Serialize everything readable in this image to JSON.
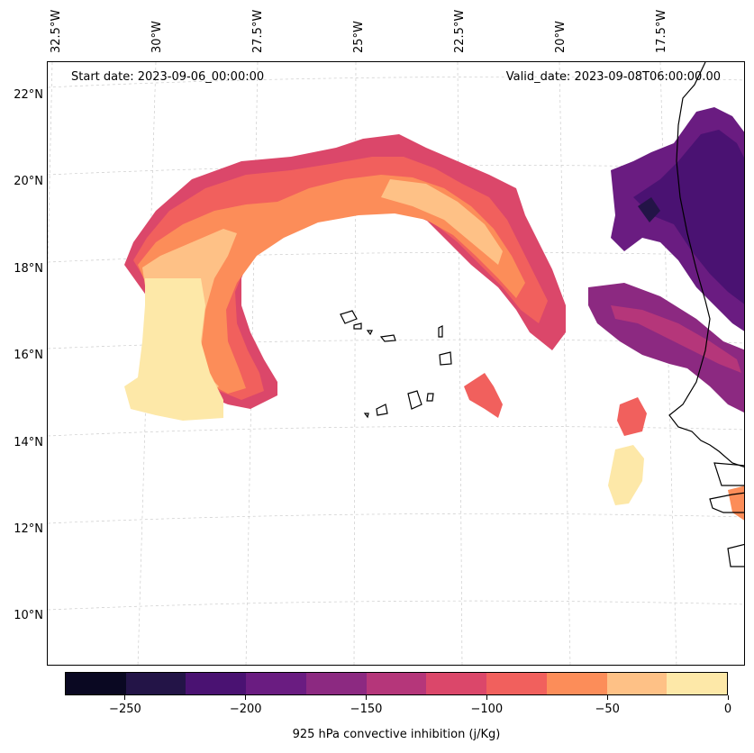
{
  "map": {
    "start_date": "Start date: 2023-09-06_00:00:00",
    "valid_date": "Valid_date: 2023-09-08T06:00:00.00",
    "lon_labels": [
      "32.5°W",
      "30°W",
      "27.5°W",
      "25°W",
      "22.5°W",
      "20°W",
      "17.5°W"
    ],
    "lat_labels": [
      "22°N",
      "20°N",
      "18°N",
      "16°N",
      "14°N",
      "12°N",
      "10°N"
    ],
    "gridlines": true,
    "projection": "conic"
  },
  "colorbar": {
    "label": "925 hPa convective inhibition (j/Kg)",
    "ticks": [
      "−250",
      "−200",
      "−150",
      "−100",
      "−50",
      "0"
    ],
    "levels": [
      -275,
      -250,
      -225,
      -200,
      -175,
      -150,
      -125,
      -100,
      -75,
      -50,
      -25,
      0
    ],
    "colors": [
      "#0a0822",
      "#231447",
      "#4a1272",
      "#6a1c81",
      "#8c2981",
      "#b5367a",
      "#db476a",
      "#f1605d",
      "#fc8d59",
      "#fec186",
      "#fde8a8"
    ]
  }
}
